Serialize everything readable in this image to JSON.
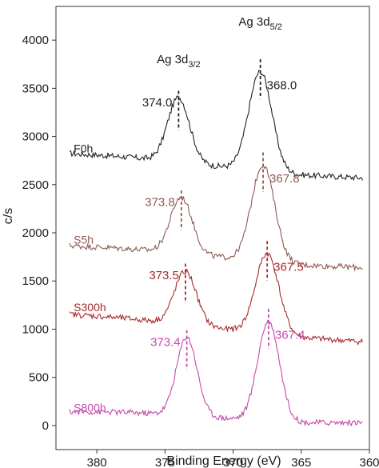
{
  "chart_data": {
    "type": "line",
    "xlabel": "Binding Energy (eV)",
    "ylabel": "c/s",
    "x_reversed": true,
    "xlim": [
      383,
      360
    ],
    "ylim": [
      -250,
      4350
    ],
    "x_ticks": [
      380,
      375,
      370,
      365,
      360
    ],
    "y_ticks": [
      0,
      500,
      1000,
      1500,
      2000,
      2500,
      3000,
      3500,
      4000
    ],
    "grid": false,
    "peak_headers": [
      {
        "base": "Ag 3d",
        "sub": "3/2",
        "x": 374.0,
        "y": 3760
      },
      {
        "base": "Ag 3d",
        "sub": "5/2",
        "x": 368.0,
        "y": 4150
      }
    ],
    "series": [
      {
        "name": "F0h",
        "color": "#222222",
        "baseline": 2720,
        "baseline_slope": -150,
        "peaks": [
          {
            "center": 374.0,
            "height": 680,
            "width": 0.8,
            "label": "374.0"
          },
          {
            "center": 368.0,
            "height": 1050,
            "width": 0.85,
            "label": "368.0"
          }
        ]
      },
      {
        "name": "S5h",
        "color": "#8c5a52",
        "baseline": 1770,
        "baseline_slope": -130,
        "peaks": [
          {
            "center": 373.8,
            "height": 590,
            "width": 0.8,
            "label": "373.8"
          },
          {
            "center": 367.8,
            "height": 1020,
            "width": 0.85,
            "label": "367.8"
          }
        ]
      },
      {
        "name": "S300h",
        "color": "#a52a2a",
        "baseline": 1070,
        "baseline_slope": -200,
        "peaks": [
          {
            "center": 373.5,
            "height": 560,
            "width": 0.8,
            "label": "373.5"
          },
          {
            "center": 367.5,
            "height": 850,
            "width": 0.85,
            "label": "367.5"
          }
        ]
      },
      {
        "name": "S800h",
        "color": "#c54aa8",
        "baseline": 30,
        "baseline_slope": 0,
        "peaks": [
          {
            "center": 373.4,
            "height": 830,
            "width": 0.75,
            "label": "373.4"
          },
          {
            "center": 367.4,
            "height": 1050,
            "width": 0.8,
            "label": "367.4"
          }
        ]
      }
    ]
  }
}
